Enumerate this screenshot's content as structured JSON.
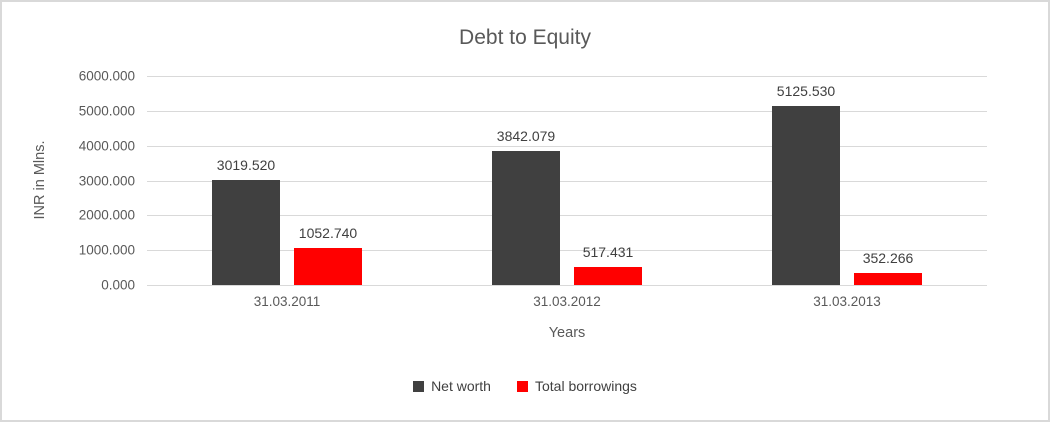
{
  "chart_data": {
    "type": "bar",
    "title": "Debt to Equity",
    "xlabel": "Years",
    "ylabel": "INR in Mlns.",
    "categories": [
      "31.03.2011",
      "31.03.2012",
      "31.03.2013"
    ],
    "series": [
      {
        "name": "Net worth",
        "color": "#404040",
        "values": [
          3019.52,
          3842.079,
          5125.53
        ],
        "labels": [
          "3019.520",
          "3842.079",
          "5125.530"
        ]
      },
      {
        "name": "Total borrowings",
        "color": "#ff0000",
        "values": [
          1052.74,
          517.431,
          352.266
        ],
        "labels": [
          "1052.740",
          "517.431",
          "352.266"
        ]
      }
    ],
    "ylim": [
      0,
      6000
    ],
    "yticks": [
      0,
      1000,
      2000,
      3000,
      4000,
      5000,
      6000
    ],
    "ytick_labels": [
      "0.000",
      "1000.000",
      "2000.000",
      "3000.000",
      "4000.000",
      "5000.000",
      "6000.000"
    ],
    "grid": true,
    "legend_position": "bottom",
    "gridline_color": "#d9d9d9",
    "axis_text_color": "#595959",
    "data_label_color": "#404040"
  }
}
